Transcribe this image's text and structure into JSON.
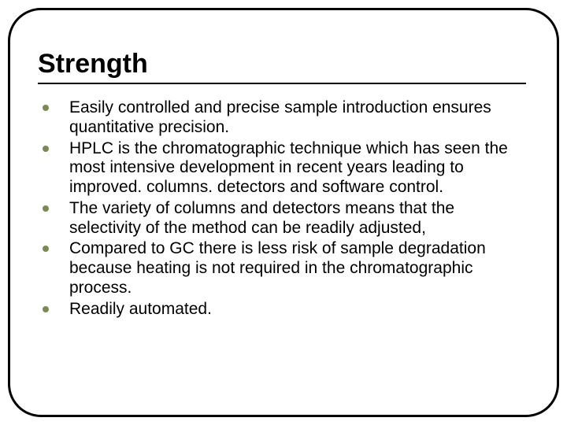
{
  "slide": {
    "title": "Strength",
    "title_fontsize": 34,
    "title_fontweight": 900,
    "title_color": "#000000",
    "rule_color": "#000000",
    "rule_thickness": 2,
    "background_color": "#ffffff",
    "frame": {
      "border_color": "#000000",
      "border_width": 3,
      "border_radius": 42
    },
    "bullet": {
      "color": "#7b8a54",
      "diameter": 8
    },
    "body_fontsize": 21,
    "body_line_height": 1.18,
    "body_color": "#000000",
    "items": [
      "Easily controlled and precise sample introduction ensures quantitative precision.",
      "HPLC is the chromatographic technique which has seen the most intensive development in recent years leading to improved. columns. detectors and software control.",
      "The variety of columns and detectors means that the selectivity of the method can be readily adjusted,",
      "Compared to GC there is less risk of sample degradation because heating is not required in the chromatographic process.",
      "Readily automated."
    ]
  }
}
